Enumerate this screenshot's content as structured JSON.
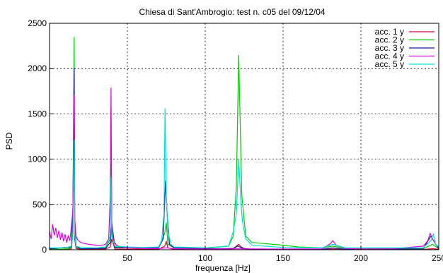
{
  "chart_data": {
    "type": "line",
    "title": "Chiesa di Sant'Ambrogio: test n. c05 del 09/12/04",
    "xlabel": "frequenza [Hz]",
    "ylabel": "PSD",
    "xlim": [
      0,
      250
    ],
    "ylim": [
      0,
      2500
    ],
    "x_ticks": [
      "50",
      "100",
      "150",
      "200",
      "250"
    ],
    "y_ticks": [
      "0",
      "500",
      "1000",
      "1500",
      "2000",
      "2500"
    ],
    "grid": true,
    "legend_position": "top-right",
    "series": [
      {
        "name": "acc. 1 y",
        "color": "#cc0033",
        "x": [
          0,
          14,
          15,
          15.8,
          16.2,
          17,
          20,
          36,
          39,
          40,
          42,
          70,
          74,
          75,
          76,
          80,
          110,
          118,
          120,
          121.5,
          123,
          126,
          140,
          175,
          182,
          190,
          240,
          246,
          250
        ],
        "y": [
          5,
          10,
          180,
          1390,
          120,
          15,
          4,
          8,
          30,
          120,
          8,
          5,
          40,
          90,
          20,
          3,
          4,
          10,
          40,
          60,
          30,
          6,
          2,
          3,
          8,
          2,
          3,
          12,
          5
        ]
      },
      {
        "name": "acc. 2 y",
        "color": "#00cc00",
        "x": [
          0,
          10,
          14,
          15,
          15.8,
          16.2,
          17,
          20,
          36,
          39,
          39.5,
          40,
          42,
          50,
          70,
          74,
          75,
          76,
          80,
          100,
          115,
          118,
          120,
          121.5,
          122.5,
          123.5,
          126,
          130,
          150,
          160,
          175,
          182,
          190,
          240,
          246,
          250
        ],
        "y": [
          5,
          8,
          20,
          300,
          2350,
          200,
          30,
          10,
          20,
          120,
          950,
          200,
          30,
          20,
          25,
          180,
          300,
          60,
          20,
          15,
          40,
          150,
          700,
          2150,
          1370,
          600,
          150,
          80,
          50,
          30,
          20,
          40,
          15,
          10,
          60,
          10
        ]
      },
      {
        "name": "acc. 3 y",
        "color": "#1a1aa0",
        "x": [
          0,
          14,
          15,
          15.8,
          16.2,
          17,
          20,
          36,
          39,
          40,
          42,
          70,
          73,
          74.5,
          75.5,
          77,
          80,
          110,
          118,
          121,
          124,
          130,
          175,
          182,
          190,
          240,
          245,
          247,
          250
        ],
        "y": [
          10,
          30,
          450,
          2010,
          300,
          40,
          10,
          15,
          80,
          300,
          20,
          20,
          120,
          760,
          400,
          60,
          20,
          10,
          15,
          40,
          15,
          5,
          5,
          20,
          5,
          10,
          150,
          90,
          10
        ]
      },
      {
        "name": "acc. 4 y",
        "color": "#dd00dd",
        "x": [
          0,
          1,
          2,
          3,
          4,
          5,
          6,
          7,
          8,
          9,
          10,
          11,
          12,
          13,
          14,
          15,
          15.8,
          16.2,
          17,
          18,
          20,
          22,
          25,
          30,
          33,
          36,
          38,
          39,
          39.5,
          40,
          41,
          43,
          46,
          50,
          60,
          70,
          75,
          80,
          100,
          120,
          150,
          175,
          180,
          182,
          184,
          190,
          200,
          220,
          240,
          243,
          244.5,
          246,
          248,
          250
        ],
        "y": [
          200,
          120,
          280,
          160,
          240,
          130,
          210,
          110,
          190,
          95,
          170,
          80,
          150,
          100,
          250,
          450,
          1710,
          350,
          150,
          110,
          80,
          70,
          60,
          50,
          45,
          60,
          120,
          600,
          1790,
          300,
          100,
          50,
          30,
          20,
          15,
          12,
          20,
          10,
          8,
          10,
          8,
          10,
          60,
          100,
          50,
          15,
          8,
          10,
          40,
          100,
          180,
          120,
          60,
          30
        ]
      },
      {
        "name": "acc. 5 y",
        "color": "#00dddd",
        "x": [
          0,
          10,
          14,
          15,
          15.8,
          16.2,
          17,
          20,
          30,
          36,
          39,
          39.5,
          40,
          42,
          50,
          60,
          70,
          72,
          73.5,
          74.2,
          75,
          76,
          78,
          80,
          100,
          115,
          118,
          120,
          121.5,
          123,
          124,
          126,
          130,
          150,
          175,
          182,
          190,
          240,
          245,
          246.5,
          248,
          250
        ],
        "y": [
          20,
          20,
          40,
          150,
          1210,
          180,
          40,
          25,
          20,
          30,
          150,
          800,
          150,
          40,
          30,
          25,
          30,
          100,
          400,
          1560,
          600,
          200,
          60,
          30,
          20,
          40,
          200,
          400,
          1000,
          500,
          300,
          120,
          50,
          25,
          20,
          60,
          20,
          20,
          100,
          170,
          60,
          30
        ]
      }
    ]
  }
}
